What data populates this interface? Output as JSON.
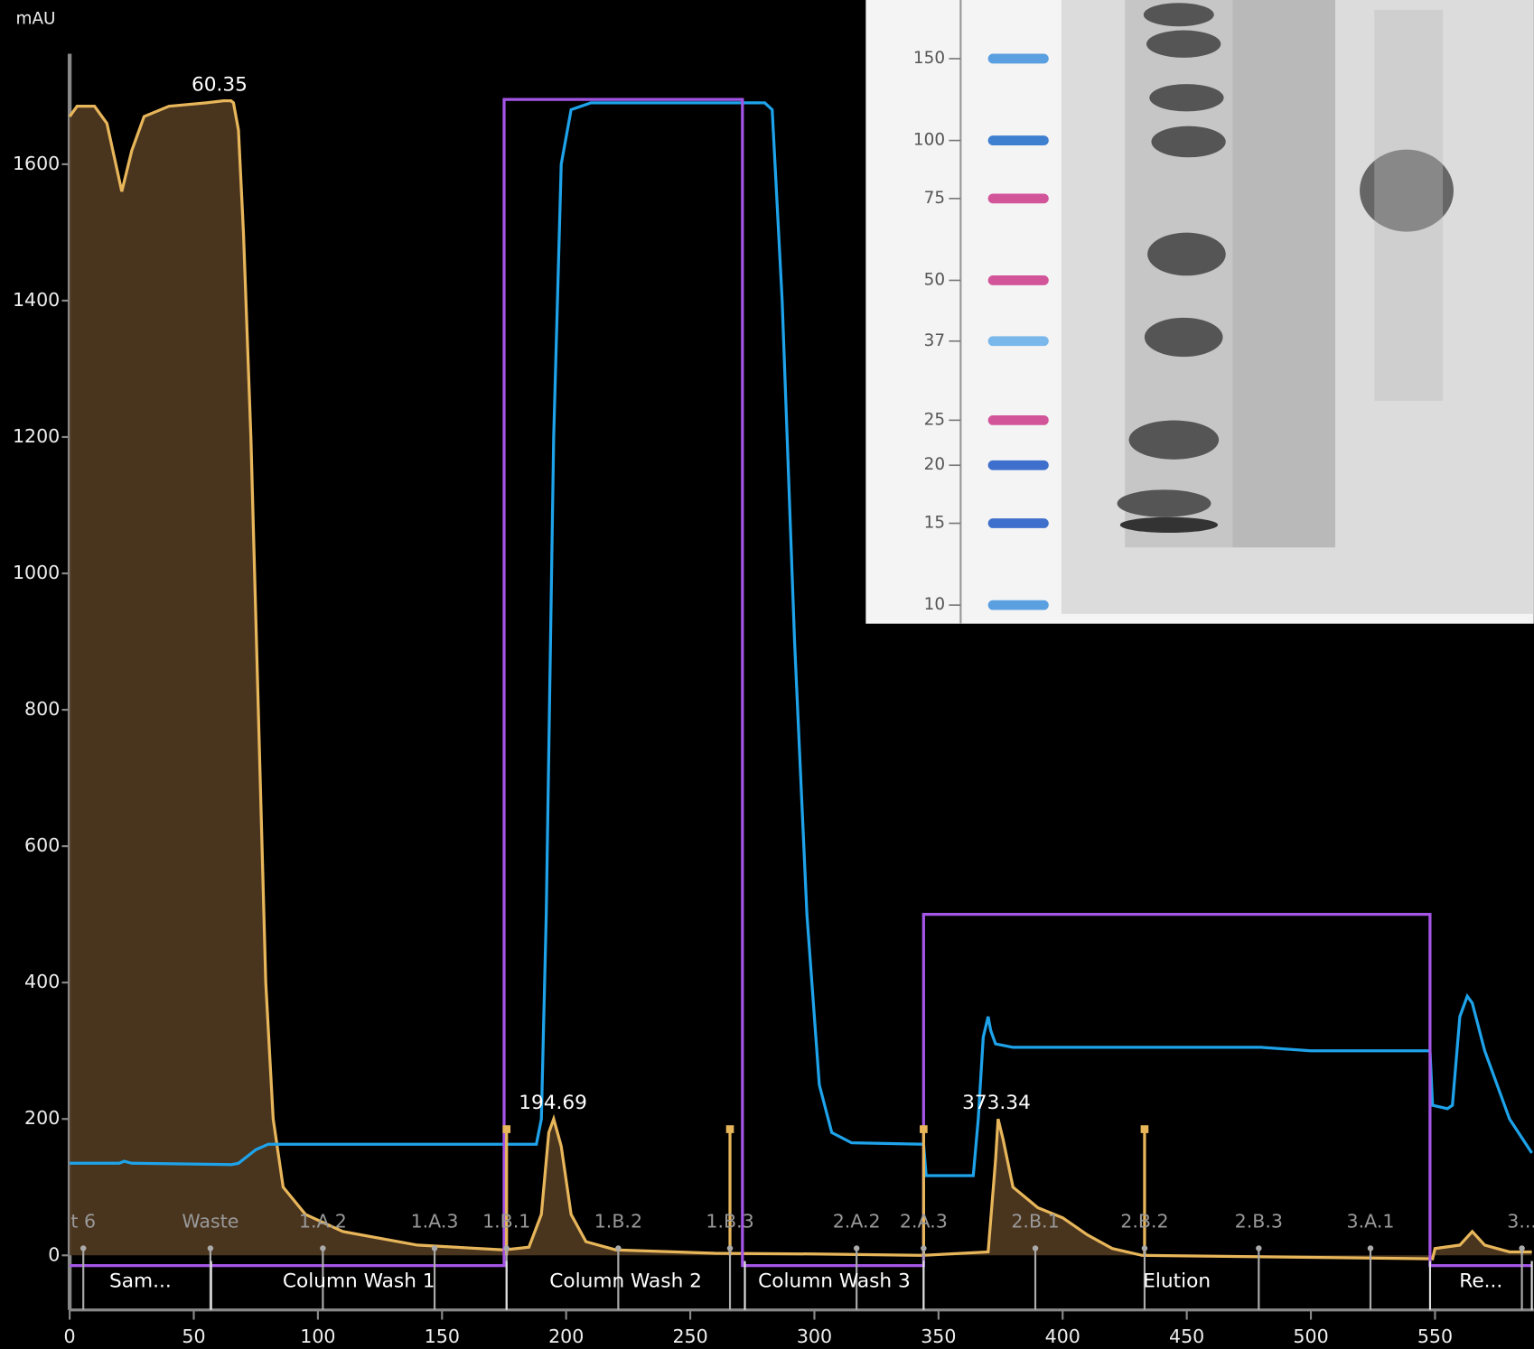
{
  "chart_data": {
    "type": "line",
    "y_label": "mAU",
    "xlim": [
      0,
      589
    ],
    "ylim": [
      -80,
      1762
    ],
    "xticks": [
      0,
      50,
      100,
      150,
      200,
      250,
      300,
      350,
      400,
      450,
      500,
      550
    ],
    "yticks": [
      0,
      200,
      400,
      600,
      800,
      1000,
      1200,
      1400,
      1600
    ],
    "series": [
      {
        "color": "#e8b65a",
        "fill": "#4d3720",
        "x": [
          0,
          3,
          10,
          15,
          21,
          25,
          30,
          40,
          55,
          62,
          65,
          66,
          68,
          70,
          73,
          76,
          79,
          82,
          86,
          95,
          110,
          140,
          175,
          185,
          190,
          193,
          195,
          198,
          202,
          208,
          220,
          260,
          300,
          344,
          370,
          373,
          374,
          376,
          380,
          390,
          400,
          410,
          420,
          432,
          500,
          549,
          550,
          560,
          565,
          570,
          580,
          589
        ],
        "values": [
          1670,
          1685,
          1685,
          1660,
          1560,
          1620,
          1670,
          1685,
          1690,
          1693,
          1693,
          1690,
          1650,
          1500,
          1200,
          800,
          400,
          200,
          100,
          60,
          35,
          15,
          8,
          12,
          60,
          180,
          200,
          160,
          60,
          20,
          8,
          3,
          2,
          0,
          5,
          140,
          200,
          170,
          100,
          70,
          55,
          30,
          10,
          0,
          -3,
          -5,
          10,
          15,
          35,
          15,
          5,
          5
        ]
      },
      {
        "color": "#1ea3ea",
        "x": [
          0,
          20,
          22,
          25,
          65,
          68,
          75,
          80,
          175,
          188,
          190,
          192,
          195,
          198,
          202,
          210,
          280,
          283,
          287,
          292,
          297,
          302,
          307,
          315,
          344,
          345,
          364,
          366,
          368,
          370,
          371,
          373,
          380,
          480,
          500,
          548,
          549,
          555,
          557,
          560,
          563,
          565,
          570,
          580,
          589
        ],
        "values": [
          135,
          135,
          138,
          135,
          133,
          135,
          155,
          163,
          163,
          163,
          200,
          500,
          1200,
          1600,
          1680,
          1690,
          1690,
          1680,
          1400,
          900,
          500,
          250,
          180,
          165,
          163,
          117,
          117,
          200,
          320,
          350,
          330,
          310,
          305,
          305,
          300,
          300,
          220,
          215,
          220,
          350,
          380,
          370,
          300,
          200,
          150
        ]
      },
      {
        "color": "#a455e6",
        "x": [
          0,
          175,
          175,
          271,
          271,
          344,
          344,
          548,
          548,
          589
        ],
        "values": [
          -15,
          -15,
          1695,
          1695,
          -15,
          -15,
          500,
          500,
          -15,
          -15
        ]
      }
    ],
    "peaks": [
      {
        "x": 60.35,
        "y": 1693
      },
      {
        "x": 194.69,
        "y": 200
      },
      {
        "x": 373.34,
        "y": 200
      }
    ],
    "event_marks": [
      176,
      266,
      344,
      433
    ],
    "fractions": [
      {
        "label": "t 6",
        "x": 5.5
      },
      {
        "label": "Waste",
        "x": 56.7
      },
      {
        "label": "1.A.2",
        "x": 102
      },
      {
        "label": "1.A.3",
        "x": 147
      },
      {
        "label": "1.B.1",
        "x": 176
      },
      {
        "label": "1.B.2",
        "x": 221
      },
      {
        "label": "1.B.3",
        "x": 266
      },
      {
        "label": "2.A.2",
        "x": 317
      },
      {
        "label": "2.A.3",
        "x": 344
      },
      {
        "label": "2.B.1",
        "x": 389
      },
      {
        "label": "2.B.2",
        "x": 433
      },
      {
        "label": "2.B.3",
        "x": 479
      },
      {
        "label": "3.A.1",
        "x": 524
      },
      {
        "label": "3...",
        "x": 585
      }
    ],
    "phases": [
      {
        "label": "Sam...",
        "start": 0,
        "end": 57
      },
      {
        "label": "Column Wash 1",
        "start": 57,
        "end": 176
      },
      {
        "label": "Column Wash 2",
        "start": 176,
        "end": 272
      },
      {
        "label": "Column Wash 3",
        "start": 272,
        "end": 344
      },
      {
        "label": "Elution",
        "start": 344,
        "end": 548
      },
      {
        "label": "Re...",
        "start": 548,
        "end": 589
      }
    ],
    "gel": {
      "ladder": [
        150,
        100,
        75,
        50,
        37,
        25,
        20,
        15,
        10
      ],
      "ladder_colors": [
        "#5aa0e0",
        "#3f7fd0",
        "#d2559a",
        "#d2559a",
        "#7ab8ec",
        "#d2559a",
        "#3f6fcc",
        "#3f6fcc",
        "#5aa0e0"
      ]
    }
  }
}
